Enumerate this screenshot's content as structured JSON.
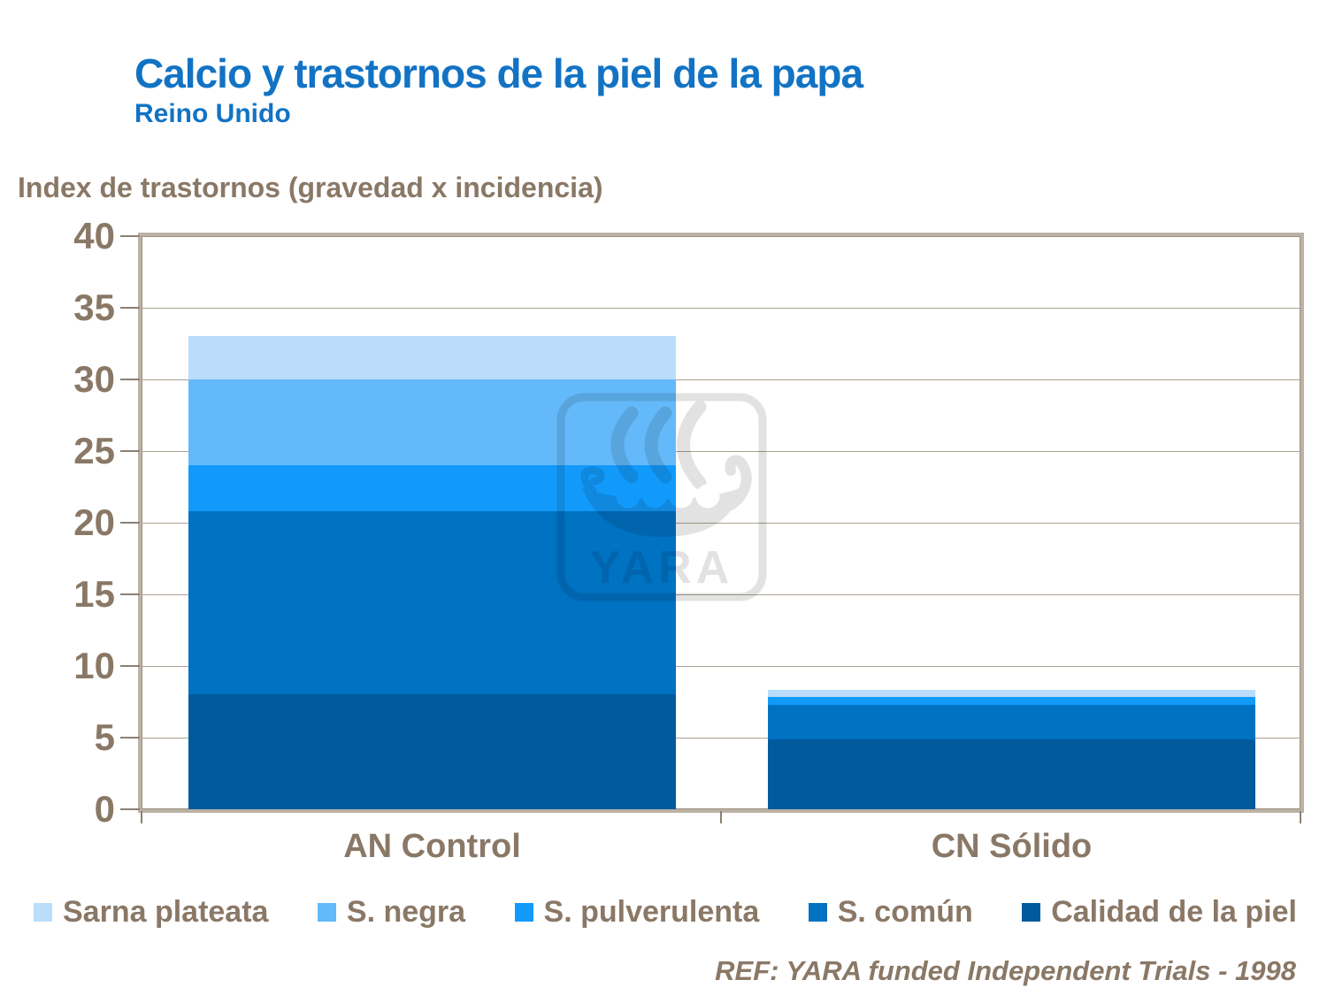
{
  "header": {
    "title": "Calcio y trastornos de la piel de la papa",
    "subtitle": "Reino Unido"
  },
  "axis_title": "Index de trastornos (gravedad x incidencia)",
  "footer": "REF: YARA funded Independent Trials - 1998",
  "watermark": {
    "text": "YARA",
    "color": "#E2E2E2"
  },
  "colors": {
    "title_blue": "#1273C4",
    "text_brown": "#8A7866",
    "gridline": "#ACA092",
    "plot_border": "#BCB1A5"
  },
  "chart_data": {
    "type": "bar",
    "subtype": "stacked-vertical",
    "title": "Calcio y trastornos de la piel de la papa",
    "subtitle": "Reino Unido",
    "ylabel": "Index de trastornos (gravedad x incidencia)",
    "xlabel": "",
    "categories": [
      "AN Control",
      "CN Sólido"
    ],
    "series": [
      {
        "name": "Calidad de la piel",
        "color": "#005A9C",
        "values": [
          8.0,
          4.9
        ]
      },
      {
        "name": "S. común",
        "color": "#0072C2",
        "values": [
          12.8,
          2.4
        ]
      },
      {
        "name": "S. pulverulenta",
        "color": "#129AFB",
        "values": [
          3.2,
          0.55
        ]
      },
      {
        "name": "S. negra",
        "color": "#63B9FA",
        "values": [
          6.0,
          0.0
        ]
      },
      {
        "name": "Sarna plateata",
        "color": "#B9DDFB",
        "values": [
          3.0,
          0.5
        ]
      }
    ],
    "totals": [
      33.0,
      8.35
    ],
    "ylim": [
      0,
      40
    ],
    "ytick_step": 5,
    "yticks": [
      0,
      5,
      10,
      15,
      20,
      25,
      30,
      35,
      40
    ],
    "grid": "horizontal",
    "legend_position": "bottom"
  },
  "legend": {
    "items": [
      {
        "label": "Sarna plateata",
        "color": "#B9DDFB"
      },
      {
        "label": "S. negra",
        "color": "#63B9FA"
      },
      {
        "label": "S. pulverulenta",
        "color": "#129AFB"
      },
      {
        "label": "S. común",
        "color": "#0072C2"
      },
      {
        "label": "Calidad de la piel",
        "color": "#005A9C"
      }
    ]
  }
}
